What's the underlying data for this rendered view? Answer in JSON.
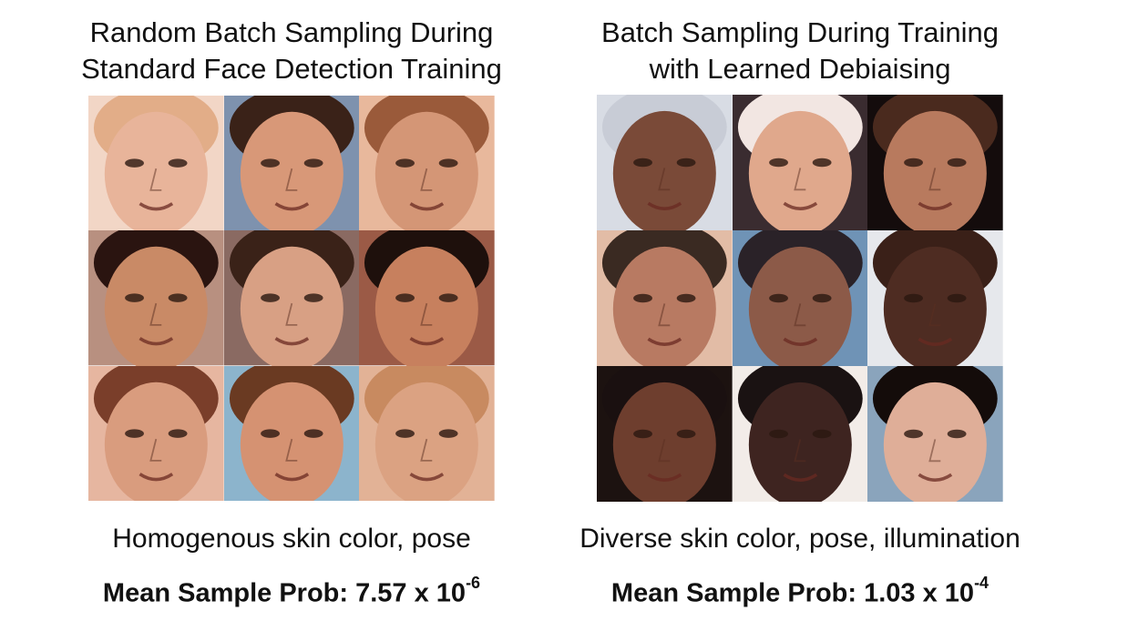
{
  "left_panel": {
    "title_line1": "Random Batch Sampling During",
    "title_line2": "Standard Face Detection Training",
    "caption": "Homogenous skin color, pose",
    "stat_label": "Mean Sample Prob:",
    "stat_mantissa": "7.57 x 10",
    "stat_exponent": "-6",
    "faces": [
      {
        "skin": "#e8b49a",
        "bg": "#f2d6c6",
        "hair": "#e2ad88"
      },
      {
        "skin": "#d89878",
        "bg": "#7e92ae",
        "hair": "#3a2218"
      },
      {
        "skin": "#d49676",
        "bg": "#e8b89c",
        "hair": "#9a5a3a"
      },
      {
        "skin": "#c98a66",
        "bg": "#b89080",
        "hair": "#2a1410"
      },
      {
        "skin": "#d8a084",
        "bg": "#8a6a62",
        "hair": "#3a2218"
      },
      {
        "skin": "#c7805e",
        "bg": "#9b5a46",
        "hair": "#1e100c"
      },
      {
        "skin": "#d99c7e",
        "bg": "#e6b6a0",
        "hair": "#7a3e2a"
      },
      {
        "skin": "#d59272",
        "bg": "#8cb4cc",
        "hair": "#6a3a22"
      },
      {
        "skin": "#dba282",
        "bg": "#e2b296",
        "hair": "#c88a60"
      }
    ]
  },
  "right_panel": {
    "title_line1": "Batch Sampling During Training",
    "title_line2": "with Learned Debiaising",
    "caption": "Diverse skin color, pose, illumination",
    "stat_label": "Mean Sample Prob:",
    "stat_mantissa": "1.03 x 10",
    "stat_exponent": "-4",
    "faces": [
      {
        "skin": "#7a4a38",
        "bg": "#d8dce4",
        "hair": "#c8ccd6"
      },
      {
        "skin": "#e0a88c",
        "bg": "#3a2c30",
        "hair": "#f2e6e2"
      },
      {
        "skin": "#b87a5e",
        "bg": "#140c0c",
        "hair": "#4a2a1e"
      },
      {
        "skin": "#b87a62",
        "bg": "#e2bca6",
        "hair": "#3a2a22"
      },
      {
        "skin": "#8c5a48",
        "bg": "#6f93b6",
        "hair": "#2a2228"
      },
      {
        "skin": "#4e2c22",
        "bg": "#e6e8ec",
        "hair": "#3a2018"
      },
      {
        "skin": "#6e3e2e",
        "bg": "#1c1210",
        "hair": "#1a1010"
      },
      {
        "skin": "#3e2420",
        "bg": "#f2ece8",
        "hair": "#1a1212"
      },
      {
        "skin": "#dfae98",
        "bg": "#8aa4bc",
        "hair": "#140c0a"
      }
    ]
  }
}
